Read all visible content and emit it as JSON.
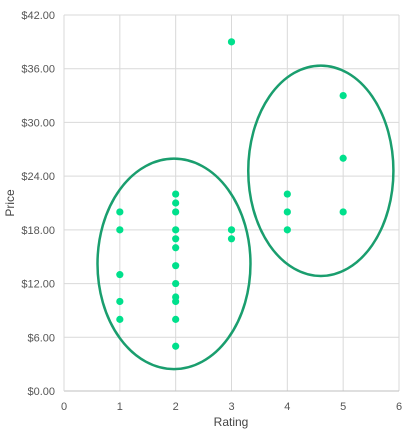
{
  "chart_data": {
    "type": "scatter",
    "xlabel": "Rating",
    "ylabel": "Price",
    "xlim": [
      0,
      6
    ],
    "ylim": [
      0,
      42
    ],
    "x_ticks": [
      "0",
      "1",
      "2",
      "3",
      "4",
      "5",
      "6"
    ],
    "y_ticks": [
      "$0.00",
      "$6.00",
      "$12.00",
      "$18.00",
      "$24.00",
      "$30.00",
      "$36.00",
      "$42.00"
    ],
    "grid": true,
    "legend": "none",
    "series": [
      {
        "color": "#00e08c",
        "points": [
          [
            1,
            20
          ],
          [
            1,
            18
          ],
          [
            1,
            13
          ],
          [
            1,
            10
          ],
          [
            1,
            8
          ],
          [
            2,
            22
          ],
          [
            2,
            21
          ],
          [
            2,
            20
          ],
          [
            2,
            18
          ],
          [
            2,
            17
          ],
          [
            2,
            16
          ],
          [
            2,
            14
          ],
          [
            2,
            12
          ],
          [
            2,
            10.5
          ],
          [
            2,
            10
          ],
          [
            2,
            8
          ],
          [
            2,
            5
          ],
          [
            3,
            39
          ],
          [
            3,
            18
          ],
          [
            3,
            17
          ],
          [
            4,
            22
          ],
          [
            4,
            20
          ],
          [
            4,
            18
          ],
          [
            5,
            33
          ],
          [
            5,
            26
          ],
          [
            5,
            20
          ]
        ]
      }
    ],
    "annotations": [
      {
        "shape": "ellipse",
        "cx": 1.97,
        "cy": 14.2,
        "rx": 1.37,
        "ry": 11.75,
        "color": "#1a9e6e"
      },
      {
        "shape": "ellipse",
        "cx": 4.6,
        "cy": 24.6,
        "rx": 1.3,
        "ry": 11.75,
        "color": "#1a9e6e"
      }
    ]
  }
}
